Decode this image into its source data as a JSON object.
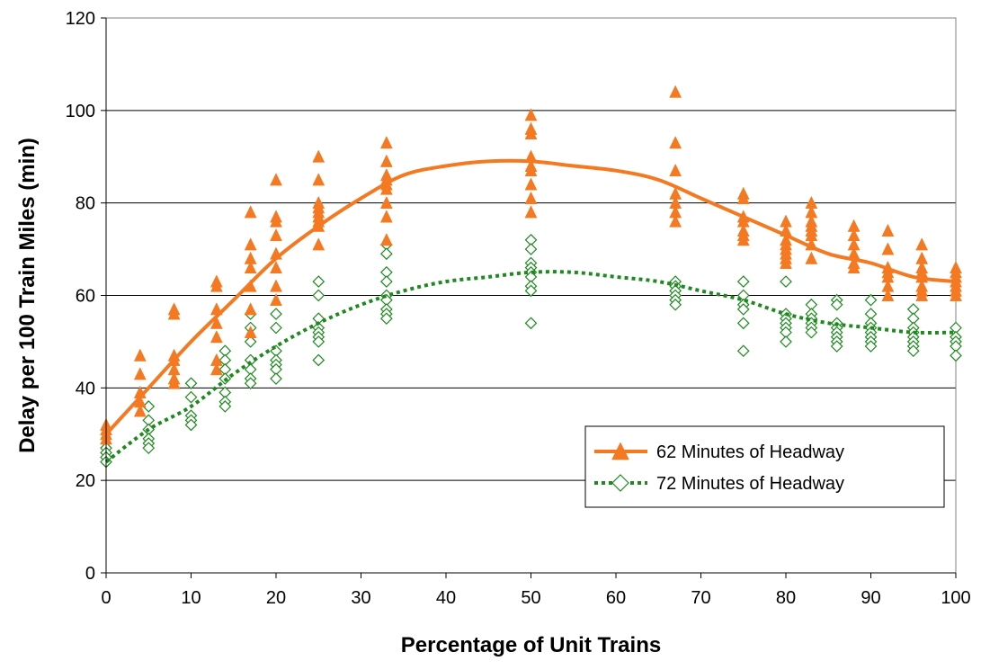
{
  "chart_data": {
    "type": "scatter",
    "xlabel": "Percentage of Unit Trains",
    "ylabel": "Delay per 100 Train Miles (min)",
    "xlim": [
      0,
      100
    ],
    "ylim": [
      0,
      120
    ],
    "xticks": [
      0,
      10,
      20,
      30,
      40,
      50,
      60,
      70,
      80,
      90,
      100
    ],
    "yticks": [
      0,
      20,
      40,
      60,
      80,
      100,
      120
    ],
    "grid": "horizontal",
    "legend_position": "lower-right",
    "series": [
      {
        "name": "62 Minutes of Headway",
        "color": "#f47920",
        "marker": "triangle",
        "trendline": "solid",
        "trend_curve": [
          [
            0,
            30
          ],
          [
            5,
            40
          ],
          [
            10,
            50
          ],
          [
            15,
            59
          ],
          [
            20,
            68
          ],
          [
            25,
            75
          ],
          [
            30,
            81
          ],
          [
            35,
            86
          ],
          [
            40,
            88
          ],
          [
            45,
            89
          ],
          [
            50,
            89
          ],
          [
            55,
            88
          ],
          [
            60,
            87
          ],
          [
            65,
            85
          ],
          [
            70,
            81
          ],
          [
            75,
            77
          ],
          [
            80,
            73
          ],
          [
            85,
            69
          ],
          [
            90,
            67
          ],
          [
            95,
            64
          ],
          [
            100,
            63
          ]
        ],
        "points": [
          [
            0,
            32
          ],
          [
            0,
            31
          ],
          [
            0,
            30
          ],
          [
            0,
            29
          ],
          [
            4,
            47
          ],
          [
            4,
            43
          ],
          [
            4,
            39
          ],
          [
            4,
            37
          ],
          [
            4,
            35
          ],
          [
            8,
            57
          ],
          [
            8,
            56
          ],
          [
            8,
            47
          ],
          [
            8,
            46
          ],
          [
            8,
            44
          ],
          [
            8,
            42
          ],
          [
            8,
            41
          ],
          [
            13,
            63
          ],
          [
            13,
            62
          ],
          [
            13,
            57
          ],
          [
            13,
            54
          ],
          [
            13,
            51
          ],
          [
            13,
            46
          ],
          [
            13,
            44
          ],
          [
            17,
            78
          ],
          [
            17,
            71
          ],
          [
            17,
            68
          ],
          [
            17,
            66
          ],
          [
            17,
            62
          ],
          [
            17,
            57
          ],
          [
            17,
            52
          ],
          [
            20,
            85
          ],
          [
            20,
            77
          ],
          [
            20,
            76
          ],
          [
            20,
            73
          ],
          [
            20,
            69
          ],
          [
            20,
            66
          ],
          [
            20,
            62
          ],
          [
            20,
            59
          ],
          [
            25,
            90
          ],
          [
            25,
            85
          ],
          [
            25,
            80
          ],
          [
            25,
            79
          ],
          [
            25,
            78
          ],
          [
            25,
            77
          ],
          [
            25,
            76
          ],
          [
            25,
            75
          ],
          [
            25,
            71
          ],
          [
            33,
            93
          ],
          [
            33,
            89
          ],
          [
            33,
            86
          ],
          [
            33,
            85
          ],
          [
            33,
            84
          ],
          [
            33,
            83
          ],
          [
            33,
            80
          ],
          [
            33,
            77
          ],
          [
            33,
            72
          ],
          [
            50,
            99
          ],
          [
            50,
            96
          ],
          [
            50,
            95
          ],
          [
            50,
            90
          ],
          [
            50,
            88
          ],
          [
            50,
            87
          ],
          [
            50,
            84
          ],
          [
            50,
            81
          ],
          [
            50,
            78
          ],
          [
            67,
            104
          ],
          [
            67,
            93
          ],
          [
            67,
            87
          ],
          [
            67,
            82
          ],
          [
            67,
            80
          ],
          [
            67,
            78
          ],
          [
            67,
            76
          ],
          [
            75,
            82
          ],
          [
            75,
            81
          ],
          [
            75,
            77
          ],
          [
            75,
            76
          ],
          [
            75,
            74
          ],
          [
            75,
            73
          ],
          [
            75,
            72
          ],
          [
            80,
            76
          ],
          [
            80,
            74
          ],
          [
            80,
            72
          ],
          [
            80,
            71
          ],
          [
            80,
            70
          ],
          [
            80,
            69
          ],
          [
            80,
            68
          ],
          [
            80,
            67
          ],
          [
            83,
            80
          ],
          [
            83,
            78
          ],
          [
            83,
            76
          ],
          [
            83,
            75
          ],
          [
            83,
            74
          ],
          [
            83,
            73
          ],
          [
            83,
            71
          ],
          [
            83,
            68
          ],
          [
            88,
            75
          ],
          [
            88,
            73
          ],
          [
            88,
            71
          ],
          [
            88,
            69
          ],
          [
            88,
            67
          ],
          [
            88,
            66
          ],
          [
            92,
            74
          ],
          [
            92,
            70
          ],
          [
            92,
            66
          ],
          [
            92,
            65
          ],
          [
            92,
            64
          ],
          [
            92,
            62
          ],
          [
            92,
            60
          ],
          [
            96,
            71
          ],
          [
            96,
            68
          ],
          [
            96,
            66
          ],
          [
            96,
            65
          ],
          [
            96,
            64
          ],
          [
            96,
            62
          ],
          [
            96,
            61
          ],
          [
            96,
            60
          ],
          [
            100,
            66
          ],
          [
            100,
            65
          ],
          [
            100,
            64
          ],
          [
            100,
            63
          ],
          [
            100,
            62
          ],
          [
            100,
            61
          ],
          [
            100,
            60
          ]
        ]
      },
      {
        "name": "72 Minutes of Headway",
        "color": "#1e8a1e",
        "marker": "diamond",
        "trendline": "dotted",
        "trend_curve": [
          [
            0,
            24
          ],
          [
            5,
            31
          ],
          [
            10,
            36
          ],
          [
            15,
            43
          ],
          [
            20,
            49
          ],
          [
            25,
            54
          ],
          [
            30,
            58
          ],
          [
            35,
            61
          ],
          [
            40,
            63
          ],
          [
            45,
            64
          ],
          [
            50,
            65
          ],
          [
            55,
            65
          ],
          [
            60,
            64
          ],
          [
            65,
            63
          ],
          [
            70,
            61
          ],
          [
            75,
            59
          ],
          [
            80,
            56
          ],
          [
            85,
            54
          ],
          [
            90,
            53
          ],
          [
            95,
            52
          ],
          [
            100,
            52
          ]
        ],
        "points": [
          [
            0,
            27
          ],
          [
            0,
            26
          ],
          [
            0,
            25
          ],
          [
            0,
            24
          ],
          [
            5,
            36
          ],
          [
            5,
            33
          ],
          [
            5,
            31
          ],
          [
            5,
            29
          ],
          [
            5,
            28
          ],
          [
            5,
            27
          ],
          [
            10,
            41
          ],
          [
            10,
            38
          ],
          [
            10,
            34
          ],
          [
            10,
            33
          ],
          [
            10,
            32
          ],
          [
            14,
            48
          ],
          [
            14,
            46
          ],
          [
            14,
            44
          ],
          [
            14,
            42
          ],
          [
            14,
            39
          ],
          [
            14,
            37
          ],
          [
            14,
            36
          ],
          [
            17,
            56
          ],
          [
            17,
            53
          ],
          [
            17,
            50
          ],
          [
            17,
            46
          ],
          [
            17,
            44
          ],
          [
            17,
            42
          ],
          [
            17,
            41
          ],
          [
            20,
            56
          ],
          [
            20,
            53
          ],
          [
            20,
            48
          ],
          [
            20,
            46
          ],
          [
            20,
            45
          ],
          [
            20,
            44
          ],
          [
            20,
            42
          ],
          [
            25,
            63
          ],
          [
            25,
            60
          ],
          [
            25,
            55
          ],
          [
            25,
            53
          ],
          [
            25,
            52
          ],
          [
            25,
            51
          ],
          [
            25,
            50
          ],
          [
            25,
            46
          ],
          [
            33,
            71
          ],
          [
            33,
            69
          ],
          [
            33,
            65
          ],
          [
            33,
            63
          ],
          [
            33,
            60
          ],
          [
            33,
            59
          ],
          [
            33,
            57
          ],
          [
            33,
            56
          ],
          [
            33,
            55
          ],
          [
            50,
            72
          ],
          [
            50,
            70
          ],
          [
            50,
            67
          ],
          [
            50,
            66
          ],
          [
            50,
            65
          ],
          [
            50,
            64
          ],
          [
            50,
            62
          ],
          [
            50,
            61
          ],
          [
            50,
            54
          ],
          [
            67,
            63
          ],
          [
            67,
            62
          ],
          [
            67,
            61
          ],
          [
            67,
            60
          ],
          [
            67,
            59
          ],
          [
            67,
            58
          ],
          [
            75,
            63
          ],
          [
            75,
            60
          ],
          [
            75,
            58
          ],
          [
            75,
            57
          ],
          [
            75,
            54
          ],
          [
            75,
            48
          ],
          [
            80,
            63
          ],
          [
            80,
            56
          ],
          [
            80,
            55
          ],
          [
            80,
            54
          ],
          [
            80,
            53
          ],
          [
            80,
            52
          ],
          [
            80,
            50
          ],
          [
            83,
            58
          ],
          [
            83,
            56
          ],
          [
            83,
            55
          ],
          [
            83,
            54
          ],
          [
            83,
            53
          ],
          [
            83,
            52
          ],
          [
            86,
            59
          ],
          [
            86,
            58
          ],
          [
            86,
            54
          ],
          [
            86,
            53
          ],
          [
            86,
            52
          ],
          [
            86,
            51
          ],
          [
            86,
            50
          ],
          [
            86,
            49
          ],
          [
            90,
            59
          ],
          [
            90,
            56
          ],
          [
            90,
            54
          ],
          [
            90,
            53
          ],
          [
            90,
            52
          ],
          [
            90,
            51
          ],
          [
            90,
            50
          ],
          [
            90,
            49
          ],
          [
            95,
            57
          ],
          [
            95,
            55
          ],
          [
            95,
            53
          ],
          [
            95,
            52
          ],
          [
            95,
            51
          ],
          [
            95,
            50
          ],
          [
            95,
            49
          ],
          [
            95,
            48
          ],
          [
            100,
            53
          ],
          [
            100,
            51
          ],
          [
            100,
            50
          ],
          [
            100,
            49
          ],
          [
            100,
            47
          ]
        ]
      }
    ]
  }
}
